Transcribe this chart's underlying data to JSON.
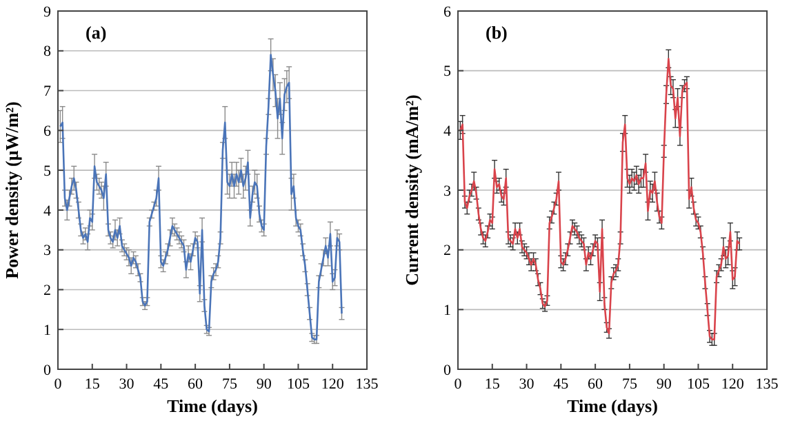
{
  "chart_data": [
    {
      "type": "line",
      "annotations": [
        "(a)"
      ],
      "xlabel": "Time (days)",
      "ylabel": "Power density (μW/m²)",
      "xlim": [
        0,
        135
      ],
      "xticks": [
        0,
        15,
        30,
        45,
        60,
        75,
        90,
        105,
        120,
        135
      ],
      "ylim": [
        0,
        9
      ],
      "yticks": [
        0,
        1,
        2,
        3,
        4,
        5,
        6,
        7,
        8,
        9
      ],
      "grid": "y",
      "series": [
        {
          "color": "#4a74b8",
          "x": [
            1,
            2,
            3,
            4,
            5,
            6,
            7,
            8,
            9,
            10,
            11,
            12,
            13,
            14,
            15,
            16,
            17,
            18,
            19,
            20,
            21,
            22,
            23,
            24,
            25,
            26,
            27,
            28,
            29,
            30,
            31,
            32,
            33,
            34,
            35,
            36,
            37,
            38,
            39,
            40,
            41,
            42,
            43,
            44,
            45,
            46,
            47,
            48,
            49,
            50,
            51,
            52,
            53,
            54,
            55,
            56,
            57,
            58,
            59,
            60,
            61,
            62,
            63,
            64,
            65,
            66,
            67,
            68,
            69,
            70,
            71,
            72,
            73,
            74,
            75,
            76,
            77,
            78,
            79,
            80,
            81,
            82,
            83,
            84,
            85,
            86,
            87,
            88,
            89,
            90,
            91,
            92,
            93,
            94,
            95,
            96,
            97,
            98,
            99,
            100,
            101,
            102,
            103,
            104,
            105,
            106,
            107,
            108,
            109,
            110,
            111,
            112,
            113,
            114,
            115,
            116,
            117,
            118,
            119,
            120,
            121,
            122,
            123,
            124
          ],
          "values": [
            6.1,
            6.2,
            4.3,
            4.0,
            4.3,
            4.6,
            4.8,
            4.5,
            4.0,
            3.5,
            3.3,
            3.4,
            3.2,
            3.8,
            3.7,
            5.1,
            4.7,
            4.6,
            4.5,
            4.3,
            4.9,
            3.5,
            3.3,
            3.2,
            3.5,
            3.3,
            3.6,
            3.1,
            3.0,
            2.9,
            2.8,
            2.6,
            2.8,
            2.7,
            2.5,
            2.3,
            1.7,
            1.6,
            1.7,
            3.7,
            3.9,
            4.1,
            4.3,
            4.8,
            2.7,
            2.6,
            2.8,
            3.0,
            3.3,
            3.6,
            3.5,
            3.4,
            3.3,
            3.2,
            3.1,
            2.5,
            2.9,
            2.7,
            3.0,
            3.3,
            3.2,
            1.9,
            3.5,
            1.6,
            1.0,
            0.95,
            2.2,
            2.4,
            2.5,
            2.7,
            3.3,
            5.5,
            6.2,
            4.7,
            4.6,
            4.9,
            4.6,
            4.9,
            4.7,
            5.0,
            4.6,
            4.8,
            5.2,
            3.8,
            4.4,
            4.7,
            4.6,
            3.9,
            3.6,
            3.5,
            5.6,
            6.6,
            7.9,
            7.4,
            7.0,
            6.3,
            6.8,
            5.8,
            6.9,
            7.1,
            7.2,
            4.4,
            4.6,
            3.8,
            3.6,
            3.5,
            3.0,
            2.6,
            2.0,
            1.4,
            0.8,
            0.75,
            0.75,
            2.2,
            2.5,
            2.8,
            3.1,
            2.8,
            3.4,
            2.2,
            2.3,
            3.3,
            3.2,
            1.4
          ],
          "errors": [
            0.4,
            0.4,
            0.2,
            0.25,
            0.2,
            0.2,
            0.3,
            0.2,
            0.2,
            0.15,
            0.15,
            0.15,
            0.2,
            0.2,
            0.2,
            0.3,
            0.2,
            0.2,
            0.2,
            0.3,
            0.3,
            0.15,
            0.15,
            0.15,
            0.25,
            0.2,
            0.2,
            0.15,
            0.15,
            0.15,
            0.2,
            0.2,
            0.15,
            0.15,
            0.15,
            0.1,
            0.1,
            0.1,
            0.1,
            0.1,
            0.1,
            0.1,
            0.2,
            0.3,
            0.15,
            0.15,
            0.15,
            0.15,
            0.2,
            0.2,
            0.15,
            0.15,
            0.15,
            0.15,
            0.15,
            0.2,
            0.2,
            0.2,
            0.15,
            0.15,
            0.15,
            0.2,
            0.3,
            0.15,
            0.1,
            0.1,
            0.15,
            0.15,
            0.15,
            0.15,
            0.15,
            0.2,
            0.4,
            0.3,
            0.3,
            0.3,
            0.3,
            0.3,
            0.3,
            0.3,
            0.3,
            0.3,
            0.3,
            0.2,
            0.2,
            0.3,
            0.3,
            0.2,
            0.15,
            0.15,
            0.2,
            0.2,
            0.4,
            0.4,
            0.4,
            0.5,
            0.4,
            0.4,
            0.4,
            0.4,
            0.4,
            0.4,
            0.3,
            0.2,
            0.15,
            0.15,
            0.15,
            0.15,
            0.15,
            0.15,
            0.1,
            0.1,
            0.1,
            0.15,
            0.15,
            0.2,
            0.2,
            0.2,
            0.3,
            0.2,
            0.2,
            0.2,
            0.2,
            0.15
          ]
        }
      ]
    },
    {
      "type": "line",
      "annotations": [
        "(b)"
      ],
      "xlabel": "Time (days)",
      "ylabel": "Current density (mA/m²)",
      "xlim": [
        0,
        135
      ],
      "xticks": [
        0,
        15,
        30,
        45,
        60,
        75,
        90,
        105,
        120,
        135
      ],
      "ylim": [
        0,
        6
      ],
      "yticks": [
        0,
        1,
        2,
        3,
        4,
        5,
        6
      ],
      "grid": "y",
      "series": [
        {
          "color": "#d9434b",
          "x": [
            1,
            2,
            3,
            4,
            5,
            6,
            7,
            8,
            9,
            10,
            11,
            12,
            13,
            14,
            15,
            16,
            17,
            18,
            19,
            20,
            21,
            22,
            23,
            24,
            25,
            26,
            27,
            28,
            29,
            30,
            31,
            32,
            33,
            34,
            35,
            36,
            37,
            38,
            39,
            40,
            41,
            42,
            43,
            44,
            45,
            46,
            47,
            48,
            49,
            50,
            51,
            52,
            53,
            54,
            55,
            56,
            57,
            58,
            59,
            60,
            61,
            62,
            63,
            64,
            65,
            66,
            67,
            68,
            69,
            70,
            71,
            72,
            73,
            74,
            75,
            76,
            77,
            78,
            79,
            80,
            81,
            82,
            83,
            84,
            85,
            86,
            87,
            88,
            89,
            90,
            91,
            92,
            93,
            94,
            95,
            96,
            97,
            98,
            99,
            100,
            101,
            102,
            103,
            104,
            105,
            106,
            107,
            108,
            109,
            110,
            111,
            112,
            113,
            114,
            115,
            116,
            117,
            118,
            119,
            120,
            121,
            122,
            123
          ],
          "values": [
            4.0,
            4.1,
            2.8,
            2.7,
            2.9,
            3.0,
            3.15,
            2.95,
            2.6,
            2.35,
            2.2,
            2.15,
            2.3,
            2.5,
            2.45,
            3.35,
            3.05,
            3.1,
            2.9,
            2.85,
            3.2,
            2.2,
            2.15,
            2.1,
            2.35,
            2.2,
            2.35,
            2.05,
            2.0,
            1.95,
            1.85,
            1.75,
            1.85,
            1.75,
            1.5,
            1.35,
            1.1,
            1.05,
            1.15,
            2.45,
            2.55,
            2.7,
            2.85,
            3.15,
            1.8,
            1.75,
            1.85,
            2.0,
            2.2,
            2.4,
            2.35,
            2.3,
            2.2,
            2.15,
            2.1,
            1.75,
            1.95,
            1.85,
            2.0,
            2.15,
            2.1,
            1.3,
            2.35,
            1.1,
            0.7,
            0.6,
            1.45,
            1.6,
            1.65,
            1.75,
            2.2,
            3.8,
            4.1,
            3.2,
            3.1,
            3.2,
            3.15,
            3.25,
            3.1,
            3.2,
            3.2,
            3.45,
            2.65,
            3.0,
            2.95,
            3.15,
            2.8,
            2.55,
            2.45,
            3.65,
            4.6,
            5.2,
            4.75,
            4.7,
            4.2,
            4.55,
            3.9,
            4.65,
            4.75,
            4.8,
            2.85,
            3.05,
            2.7,
            2.5,
            2.45,
            2.3,
            1.95,
            1.45,
            1.0,
            0.55,
            0.5,
            0.5,
            1.55,
            1.65,
            1.75,
            2.05,
            1.85,
            1.9,
            2.3,
            1.5,
            1.55,
            2.15,
            2.1
          ],
          "errors": [
            0.15,
            0.15,
            0.1,
            0.1,
            0.1,
            0.1,
            0.15,
            0.1,
            0.1,
            0.1,
            0.1,
            0.1,
            0.1,
            0.1,
            0.1,
            0.15,
            0.1,
            0.1,
            0.1,
            0.1,
            0.15,
            0.1,
            0.1,
            0.1,
            0.1,
            0.1,
            0.1,
            0.1,
            0.1,
            0.1,
            0.1,
            0.1,
            0.1,
            0.1,
            0.1,
            0.1,
            0.08,
            0.08,
            0.08,
            0.1,
            0.1,
            0.1,
            0.1,
            0.15,
            0.1,
            0.1,
            0.1,
            0.1,
            0.1,
            0.1,
            0.1,
            0.1,
            0.1,
            0.1,
            0.1,
            0.1,
            0.1,
            0.1,
            0.1,
            0.1,
            0.1,
            0.15,
            0.15,
            0.1,
            0.08,
            0.08,
            0.1,
            0.1,
            0.1,
            0.1,
            0.1,
            0.15,
            0.15,
            0.15,
            0.15,
            0.15,
            0.15,
            0.15,
            0.15,
            0.15,
            0.15,
            0.15,
            0.15,
            0.15,
            0.15,
            0.15,
            0.15,
            0.1,
            0.1,
            0.1,
            0.15,
            0.15,
            0.15,
            0.15,
            0.15,
            0.15,
            0.15,
            0.1,
            0.1,
            0.1,
            0.15,
            0.15,
            0.1,
            0.1,
            0.1,
            0.1,
            0.1,
            0.1,
            0.1,
            0.1,
            0.1,
            0.1,
            0.1,
            0.1,
            0.1,
            0.15,
            0.15,
            0.15,
            0.15,
            0.15,
            0.15,
            0.15,
            0.1
          ]
        }
      ]
    }
  ]
}
